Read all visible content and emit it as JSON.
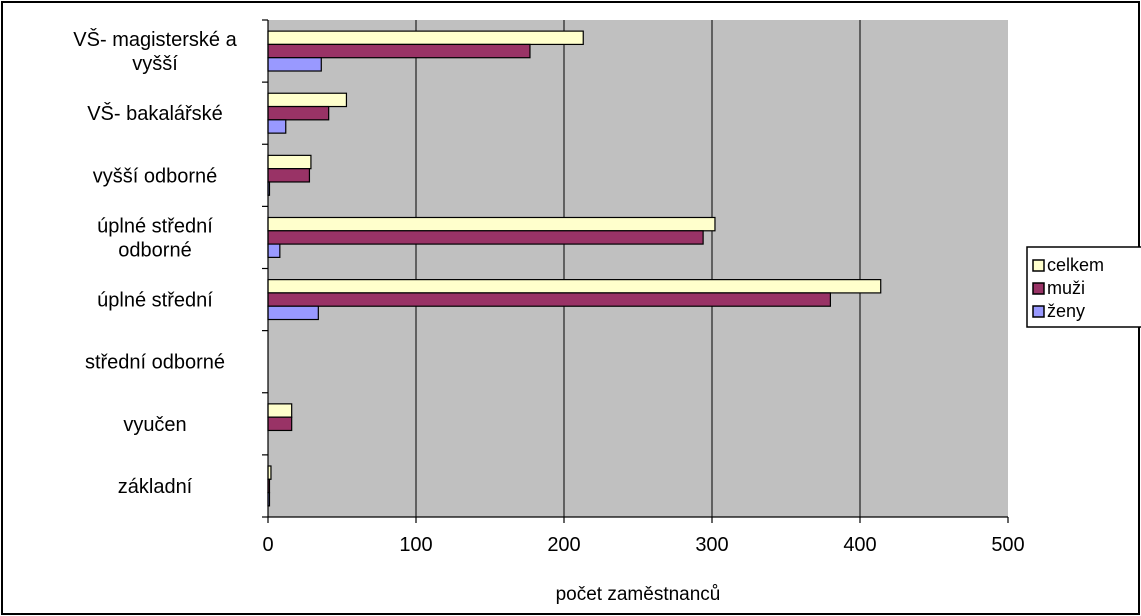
{
  "chart_data": {
    "type": "bar",
    "orientation": "horizontal",
    "categories": [
      [
        "VŠ- magisterské a",
        "vyšší"
      ],
      [
        "VŠ- bakalářské"
      ],
      [
        "vyšší odborné"
      ],
      [
        "úplné střední",
        "odborné"
      ],
      [
        "úplné střední"
      ],
      [
        "střední odborné"
      ],
      [
        "vyučen"
      ],
      [
        "základní"
      ]
    ],
    "series": [
      {
        "name": "celkem",
        "color": "#ffffcc",
        "values": [
          213,
          53,
          29,
          302,
          414,
          0,
          16,
          2
        ]
      },
      {
        "name": "muži",
        "color": "#993366",
        "values": [
          177,
          41,
          28,
          294,
          380,
          0,
          16,
          1
        ]
      },
      {
        "name": "ženy",
        "color": "#9999ff",
        "values": [
          36,
          12,
          1,
          8,
          34,
          0,
          0,
          1
        ]
      }
    ],
    "xlabel": "počet zaměstnanců",
    "xlim": [
      0,
      500
    ],
    "xticks": [
      0,
      100,
      200,
      300,
      400,
      500
    ],
    "grid": true,
    "plot_background": "#c0c0c0",
    "legend_position": "right"
  }
}
